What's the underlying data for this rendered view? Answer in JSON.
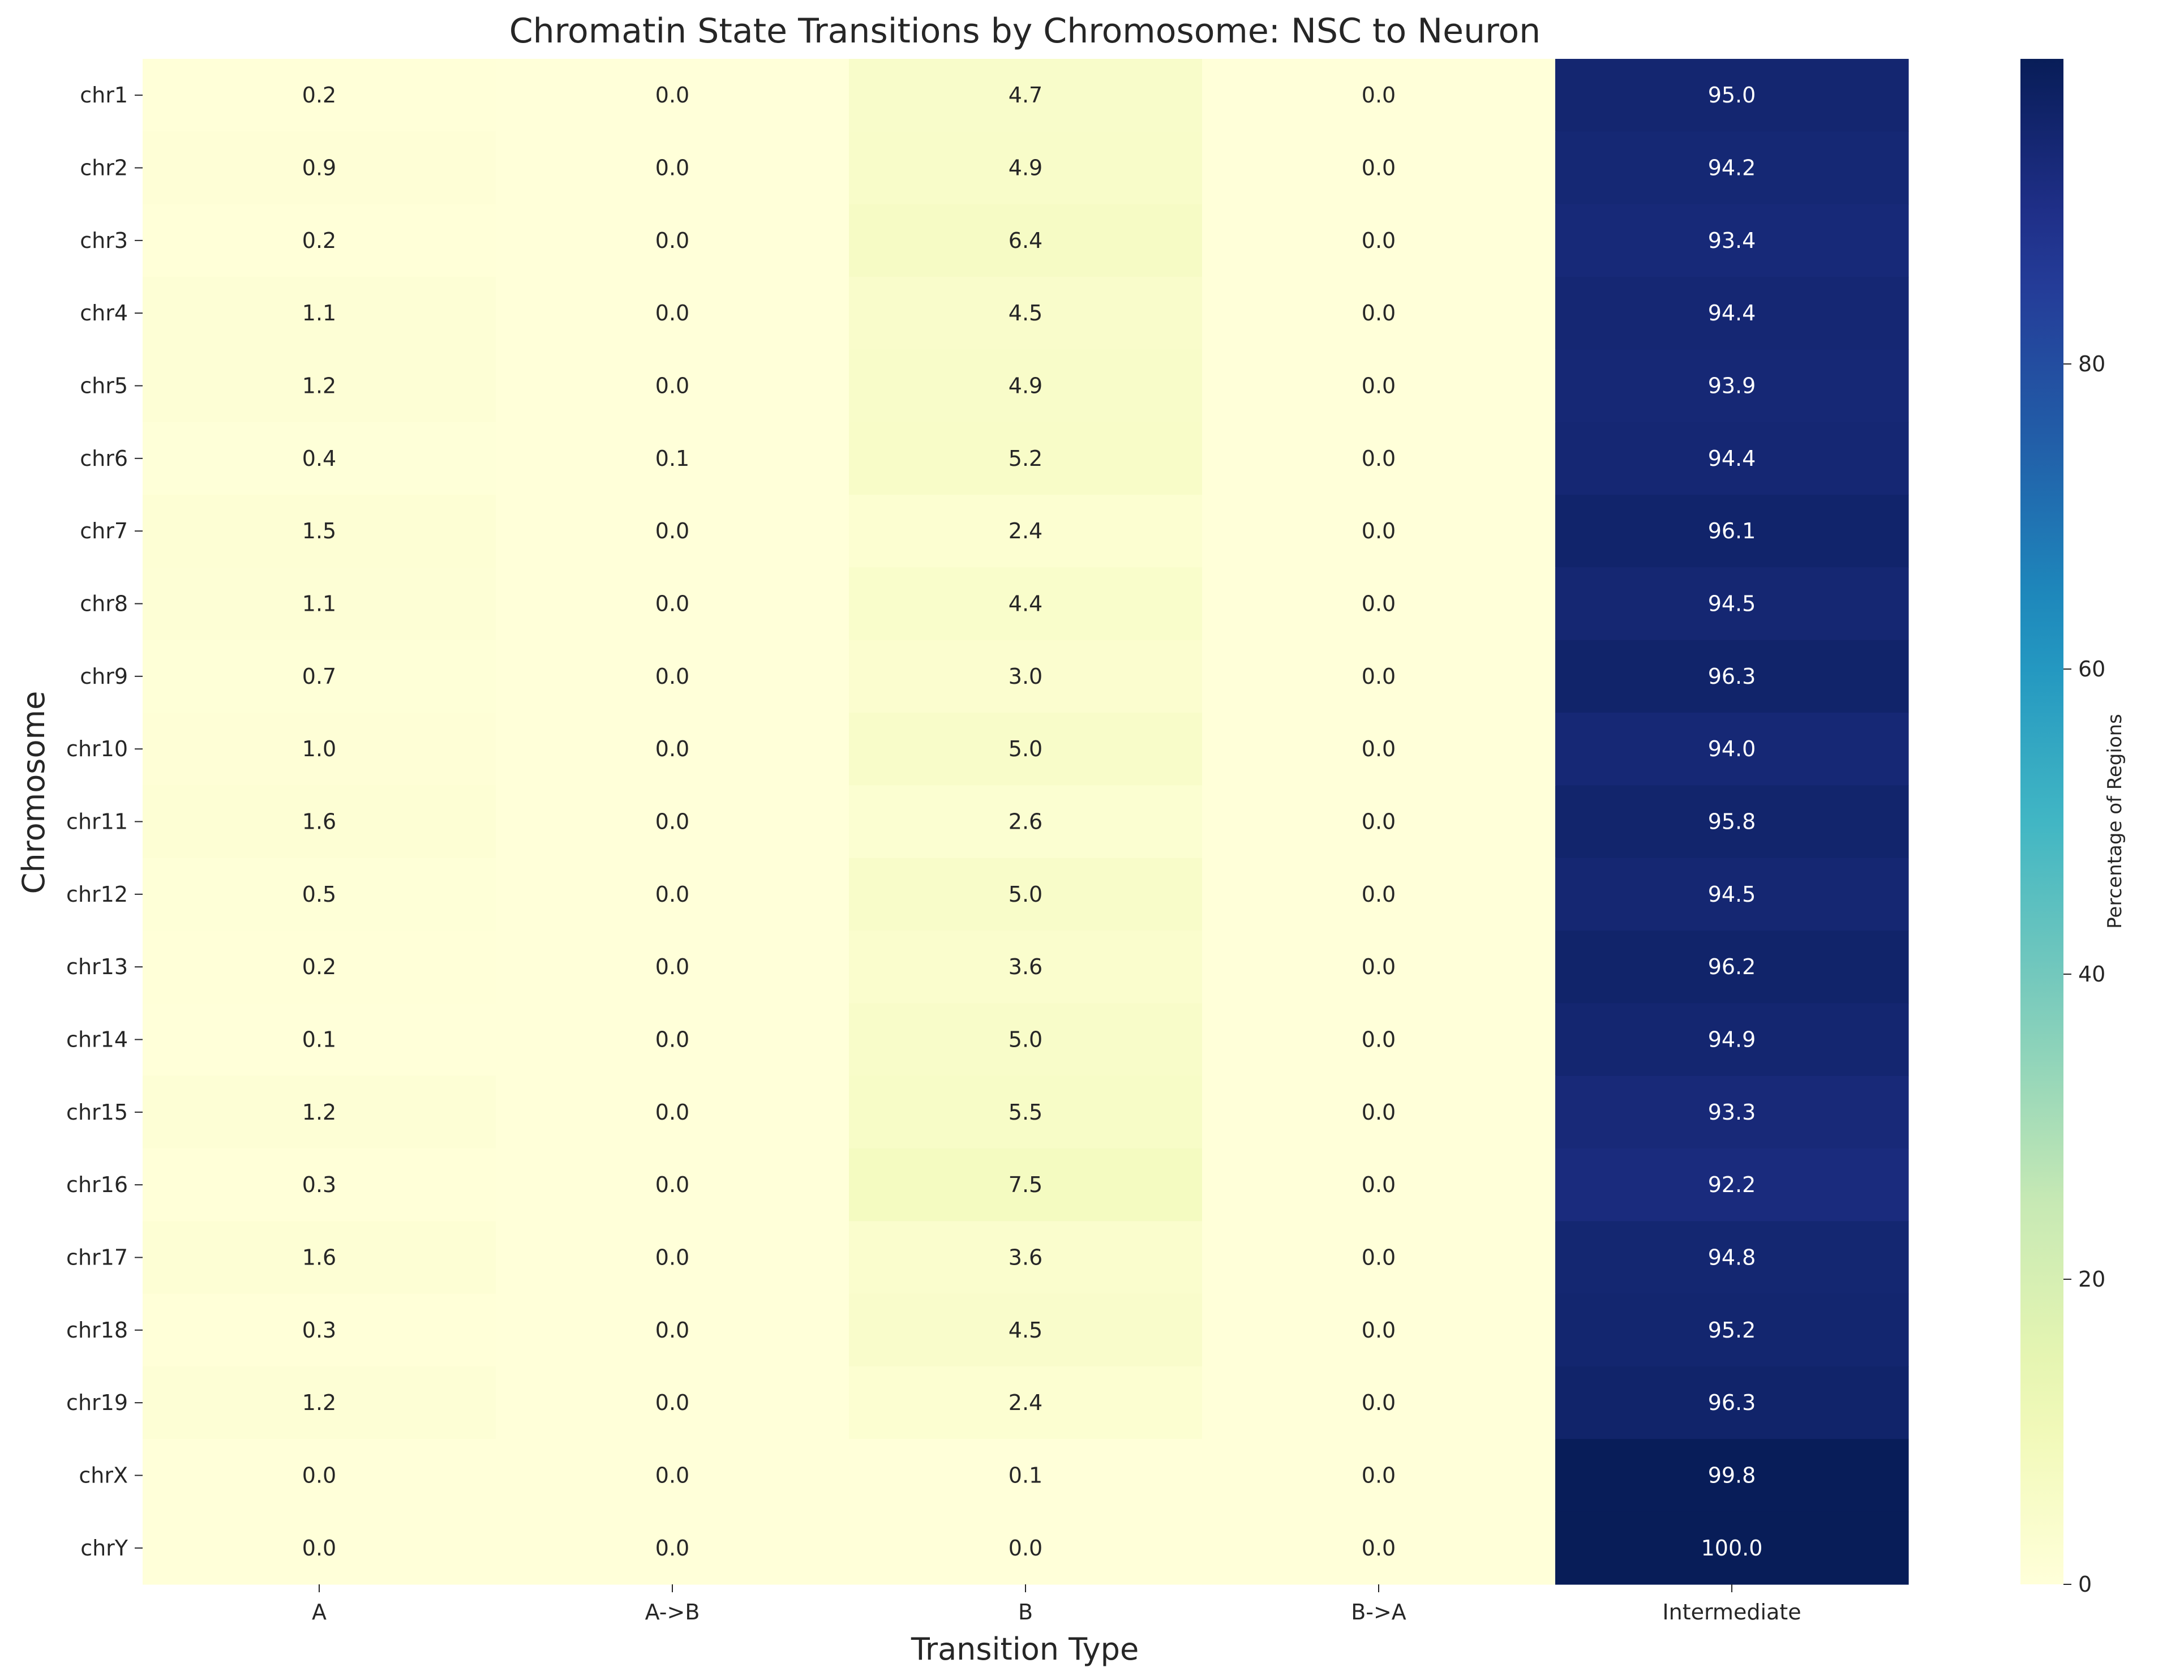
{
  "chart_data": {
    "type": "heatmap",
    "title": "Chromatin State Transitions by Chromosome: NSC to Neuron",
    "xlabel": "Transition Type",
    "ylabel": "Chromosome",
    "colorbar_label": "Percentage of Regions",
    "colormap": "YlGnBu",
    "value_range": [
      0,
      100
    ],
    "colorbar_ticks": [
      0,
      20,
      40,
      60,
      80
    ],
    "x_categories": [
      "A",
      "A->B",
      "B",
      "B->A",
      "Intermediate"
    ],
    "y_categories": [
      "chr1",
      "chr2",
      "chr3",
      "chr4",
      "chr5",
      "chr6",
      "chr7",
      "chr8",
      "chr9",
      "chr10",
      "chr11",
      "chr12",
      "chr13",
      "chr14",
      "chr15",
      "chr16",
      "chr17",
      "chr18",
      "chr19",
      "chrX",
      "chrY"
    ],
    "values": [
      [
        0.2,
        0.0,
        4.7,
        0.0,
        95.0
      ],
      [
        0.9,
        0.0,
        4.9,
        0.0,
        94.2
      ],
      [
        0.2,
        0.0,
        6.4,
        0.0,
        93.4
      ],
      [
        1.1,
        0.0,
        4.5,
        0.0,
        94.4
      ],
      [
        1.2,
        0.0,
        4.9,
        0.0,
        93.9
      ],
      [
        0.4,
        0.1,
        5.2,
        0.0,
        94.4
      ],
      [
        1.5,
        0.0,
        2.4,
        0.0,
        96.1
      ],
      [
        1.1,
        0.0,
        4.4,
        0.0,
        94.5
      ],
      [
        0.7,
        0.0,
        3.0,
        0.0,
        96.3
      ],
      [
        1.0,
        0.0,
        5.0,
        0.0,
        94.0
      ],
      [
        1.6,
        0.0,
        2.6,
        0.0,
        95.8
      ],
      [
        0.5,
        0.0,
        5.0,
        0.0,
        94.5
      ],
      [
        0.2,
        0.0,
        3.6,
        0.0,
        96.2
      ],
      [
        0.1,
        0.0,
        5.0,
        0.0,
        94.9
      ],
      [
        1.2,
        0.0,
        5.5,
        0.0,
        93.3
      ],
      [
        0.3,
        0.0,
        7.5,
        0.0,
        92.2
      ],
      [
        1.6,
        0.0,
        3.6,
        0.0,
        94.8
      ],
      [
        0.3,
        0.0,
        4.5,
        0.0,
        95.2
      ],
      [
        1.2,
        0.0,
        2.4,
        0.0,
        96.3
      ],
      [
        0.0,
        0.0,
        0.1,
        0.0,
        99.8
      ],
      [
        0.0,
        0.0,
        0.0,
        0.0,
        100.0
      ]
    ],
    "value_format": "one decimal",
    "grid": false,
    "legend": "colorbar-right"
  },
  "colors": {
    "text": "#262626",
    "annotation_dark_bg": "#ffffff",
    "annotation_light_bg": "#262626"
  }
}
